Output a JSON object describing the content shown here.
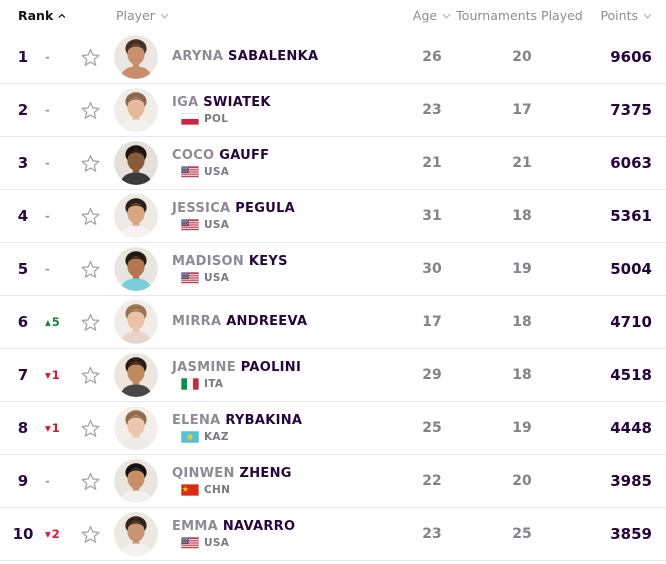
{
  "table": {
    "columns": [
      {
        "label": "Rank",
        "sort": "asc",
        "active": true
      },
      {
        "label": "Player",
        "sort": "none"
      },
      {
        "label": "Age",
        "sort": "none"
      },
      {
        "label": "Tournaments Played",
        "sort": "none"
      },
      {
        "label": "Points",
        "sort": "none"
      }
    ]
  },
  "colors": {
    "points_purple": "#26053e",
    "rank_purple": "#2a0a45",
    "first_name_gray": "#8f8b94",
    "value_gray": "#85828a",
    "up_green": "#12853e",
    "down_red": "#e8102d",
    "divider": "#eae5ee",
    "star_outline": "#a8a5ab"
  },
  "players": [
    {
      "rank": "1",
      "movement": {
        "direction": "same",
        "value": "-"
      },
      "first": "ARYNA",
      "last": "SABALENKA",
      "country": "",
      "age": "26",
      "tournaments": "20",
      "points": "9606",
      "avatar": {
        "bg": "#ece7e2",
        "hair": "#47301f",
        "skin": "#c98f6d",
        "shirt": "#c98f6d"
      }
    },
    {
      "rank": "2",
      "movement": {
        "direction": "same",
        "value": "-"
      },
      "first": "IGA",
      "last": "SWIATEK",
      "country": "POL",
      "age": "23",
      "tournaments": "17",
      "points": "7375",
      "avatar": {
        "bg": "#f0ece8",
        "hair": "#8a6a4f",
        "skin": "#e8b99a",
        "shirt": "#f2f0ee"
      }
    },
    {
      "rank": "3",
      "movement": {
        "direction": "same",
        "value": "-"
      },
      "first": "COCO",
      "last": "GAUFF",
      "country": "USA",
      "age": "21",
      "tournaments": "21",
      "points": "6063",
      "avatar": {
        "bg": "#e5e0da",
        "hair": "#1d1410",
        "skin": "#8a5a3c",
        "shirt": "#3a3a3a"
      }
    },
    {
      "rank": "4",
      "movement": {
        "direction": "same",
        "value": "-"
      },
      "first": "JESSICA",
      "last": "PEGULA",
      "country": "USA",
      "age": "31",
      "tournaments": "18",
      "points": "5361",
      "avatar": {
        "bg": "#ede9e4",
        "hair": "#2e211a",
        "skin": "#d9a77f",
        "shirt": "#f5f3f1"
      }
    },
    {
      "rank": "5",
      "movement": {
        "direction": "same",
        "value": "-"
      },
      "first": "MADISON",
      "last": "KEYS",
      "country": "USA",
      "age": "30",
      "tournaments": "19",
      "points": "5004",
      "avatar": {
        "bg": "#e9e6e0",
        "hair": "#241a14",
        "skin": "#b5764f",
        "shirt": "#79d0dc"
      }
    },
    {
      "rank": "6",
      "movement": {
        "direction": "up",
        "value": "5"
      },
      "first": "MIRRA",
      "last": "ANDREEVA",
      "country": "",
      "age": "17",
      "tournaments": "18",
      "points": "4710",
      "avatar": {
        "bg": "#f1ece7",
        "hair": "#9a7350",
        "skin": "#ecc3a6",
        "shirt": "#e8d5d0"
      }
    },
    {
      "rank": "7",
      "movement": {
        "direction": "down",
        "value": "1"
      },
      "first": "JASMINE",
      "last": "PAOLINI",
      "country": "ITA",
      "age": "29",
      "tournaments": "18",
      "points": "4518",
      "avatar": {
        "bg": "#ece6df",
        "hair": "#2b1d15",
        "skin": "#c08a5f",
        "shirt": "#474747"
      }
    },
    {
      "rank": "8",
      "movement": {
        "direction": "down",
        "value": "1"
      },
      "first": "ELENA",
      "last": "RYBAKINA",
      "country": "KAZ",
      "age": "25",
      "tournaments": "19",
      "points": "4448",
      "avatar": {
        "bg": "#f2eeea",
        "hair": "#8f6b4a",
        "skin": "#ecc5aa",
        "shirt": "#ece9e6"
      }
    },
    {
      "rank": "9",
      "movement": {
        "direction": "same",
        "value": "-"
      },
      "first": "QINWEN",
      "last": "ZHENG",
      "country": "CHN",
      "age": "22",
      "tournaments": "20",
      "points": "3985",
      "avatar": {
        "bg": "#eae5df",
        "hair": "#161010",
        "skin": "#c79067",
        "shirt": "#f3f1ef"
      }
    },
    {
      "rank": "10",
      "movement": {
        "direction": "down",
        "value": "2"
      },
      "first": "EMMA",
      "last": "NAVARRO",
      "country": "USA",
      "age": "23",
      "tournaments": "25",
      "points": "3859",
      "avatar": {
        "bg": "#ece8e2",
        "hair": "#33241b",
        "skin": "#c89573",
        "shirt": "#f4f2f0"
      }
    }
  ]
}
